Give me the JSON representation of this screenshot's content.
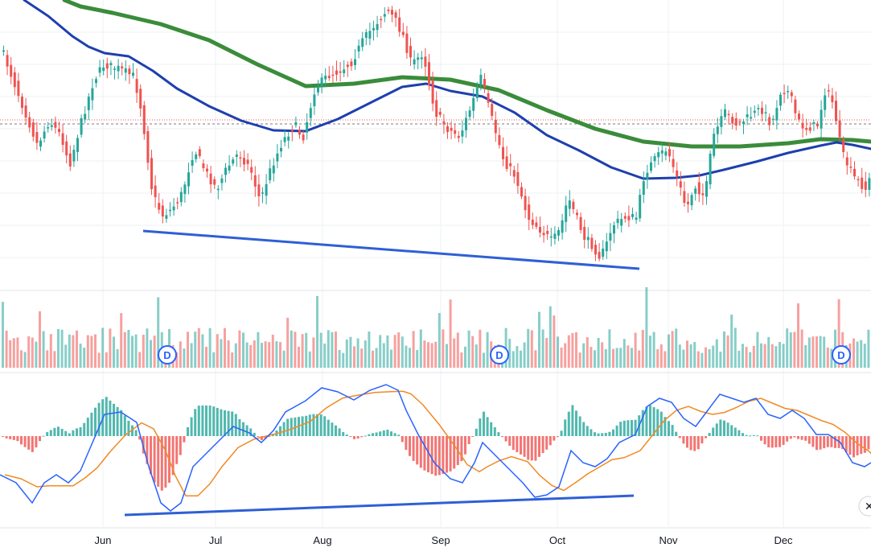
{
  "chart_data": {
    "type": "candlestick",
    "x_axis": {
      "months": [
        "Jun",
        "Jul",
        "Aug",
        "Sep",
        "Oct",
        "Nov",
        "Dec"
      ]
    },
    "colors": {
      "up": "#26a69a",
      "down": "#ef5350",
      "ma_fast": "#1e3fae",
      "ma_slow": "#3a8c3a",
      "trendline": "#2f5fd6",
      "macd_line": "#2962ff",
      "signal_line": "#f08a24",
      "grid": "#eef0f3"
    },
    "price_pane": {
      "moving_averages": [
        "ma_fast",
        "ma_slow"
      ],
      "trendline": "falling support line connecting the June low and the October low"
    },
    "volume_pane": {
      "dividend_markers": [
        "D",
        "D",
        "D"
      ]
    },
    "macd_pane": {
      "series": [
        "macd_line",
        "signal_line",
        "histogram"
      ],
      "trendline": "rising line connecting the June low and the September/October low"
    }
  },
  "ui": {
    "close_icon": "✕"
  }
}
